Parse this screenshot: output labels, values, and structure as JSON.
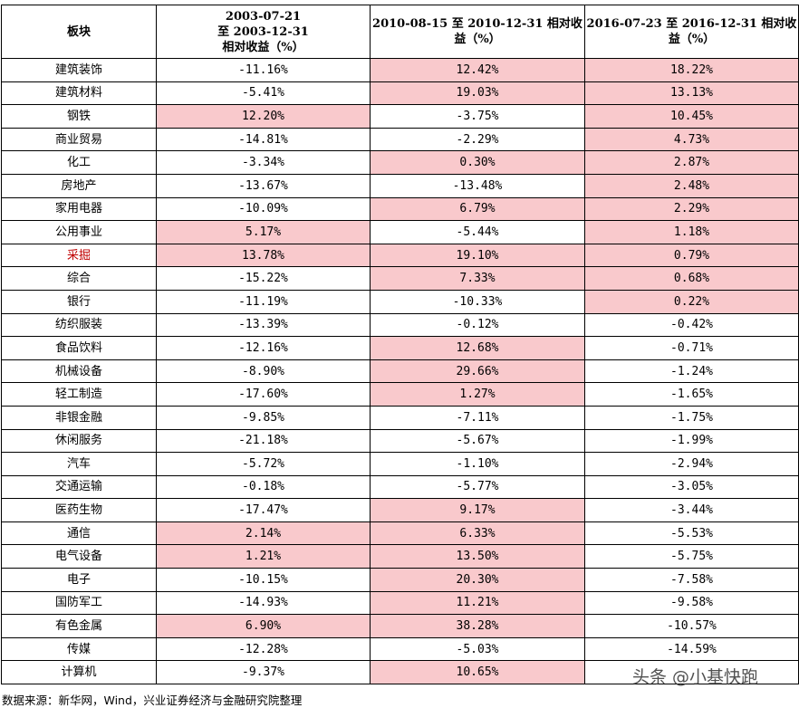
{
  "table": {
    "headers": [
      "板块",
      "2003-07-21\n至 2003-12-31\n相对收益（%）",
      "2010-08-15 至 2010-12-31 相对收益（%）",
      "2016-07-23 至 2016-12-31 相对收益（%）"
    ],
    "rows": [
      {
        "sector": "建筑装饰",
        "c1": "-11.16%",
        "c2": "12.42%",
        "c3": "18.22%",
        "h1": false,
        "h2": true,
        "h3": true,
        "red": false
      },
      {
        "sector": "建筑材料",
        "c1": "-5.41%",
        "c2": "19.03%",
        "c3": "13.13%",
        "h1": false,
        "h2": true,
        "h3": true,
        "red": false
      },
      {
        "sector": "钢铁",
        "c1": "12.20%",
        "c2": "-3.75%",
        "c3": "10.45%",
        "h1": true,
        "h2": false,
        "h3": true,
        "red": false
      },
      {
        "sector": "商业贸易",
        "c1": "-14.81%",
        "c2": "-2.29%",
        "c3": "4.73%",
        "h1": false,
        "h2": false,
        "h3": true,
        "red": false
      },
      {
        "sector": "化工",
        "c1": "-3.34%",
        "c2": "0.30%",
        "c3": "2.87%",
        "h1": false,
        "h2": true,
        "h3": true,
        "red": false
      },
      {
        "sector": "房地产",
        "c1": "-13.67%",
        "c2": "-13.48%",
        "c3": "2.48%",
        "h1": false,
        "h2": false,
        "h3": true,
        "red": false
      },
      {
        "sector": "家用电器",
        "c1": "-10.09%",
        "c2": "6.79%",
        "c3": "2.29%",
        "h1": false,
        "h2": true,
        "h3": true,
        "red": false
      },
      {
        "sector": "公用事业",
        "c1": "5.17%",
        "c2": "-5.44%",
        "c3": "1.18%",
        "h1": true,
        "h2": false,
        "h3": true,
        "red": false
      },
      {
        "sector": "采掘",
        "c1": "13.78%",
        "c2": "19.10%",
        "c3": "0.79%",
        "h1": true,
        "h2": true,
        "h3": true,
        "red": true
      },
      {
        "sector": "综合",
        "c1": "-15.22%",
        "c2": "7.33%",
        "c3": "0.68%",
        "h1": false,
        "h2": true,
        "h3": true,
        "red": false
      },
      {
        "sector": "银行",
        "c1": "-11.19%",
        "c2": "-10.33%",
        "c3": "0.22%",
        "h1": false,
        "h2": false,
        "h3": true,
        "red": false
      },
      {
        "sector": "纺织服装",
        "c1": "-13.39%",
        "c2": "-0.12%",
        "c3": "-0.42%",
        "h1": false,
        "h2": false,
        "h3": false,
        "red": false
      },
      {
        "sector": "食品饮料",
        "c1": "-12.16%",
        "c2": "12.68%",
        "c3": "-0.71%",
        "h1": false,
        "h2": true,
        "h3": false,
        "red": false
      },
      {
        "sector": "机械设备",
        "c1": "-8.90%",
        "c2": "29.66%",
        "c3": "-1.24%",
        "h1": false,
        "h2": true,
        "h3": false,
        "red": false
      },
      {
        "sector": "轻工制造",
        "c1": "-17.60%",
        "c2": "1.27%",
        "c3": "-1.65%",
        "h1": false,
        "h2": true,
        "h3": false,
        "red": false
      },
      {
        "sector": "非银金融",
        "c1": "-9.85%",
        "c2": "-7.11%",
        "c3": "-1.75%",
        "h1": false,
        "h2": false,
        "h3": false,
        "red": false
      },
      {
        "sector": "休闲服务",
        "c1": "-21.18%",
        "c2": "-5.67%",
        "c3": "-1.99%",
        "h1": false,
        "h2": false,
        "h3": false,
        "red": false
      },
      {
        "sector": "汽车",
        "c1": "-5.72%",
        "c2": "-1.10%",
        "c3": "-2.94%",
        "h1": false,
        "h2": false,
        "h3": false,
        "red": false
      },
      {
        "sector": "交通运输",
        "c1": "-0.18%",
        "c2": "-5.77%",
        "c3": "-3.05%",
        "h1": false,
        "h2": false,
        "h3": false,
        "red": false
      },
      {
        "sector": "医药生物",
        "c1": "-17.47%",
        "c2": "9.17%",
        "c3": "-3.44%",
        "h1": false,
        "h2": true,
        "h3": false,
        "red": false
      },
      {
        "sector": "通信",
        "c1": "2.14%",
        "c2": "6.33%",
        "c3": "-5.53%",
        "h1": true,
        "h2": true,
        "h3": false,
        "red": false
      },
      {
        "sector": "电气设备",
        "c1": "1.21%",
        "c2": "13.50%",
        "c3": "-5.75%",
        "h1": true,
        "h2": true,
        "h3": false,
        "red": false
      },
      {
        "sector": "电子",
        "c1": "-10.15%",
        "c2": "20.30%",
        "c3": "-7.58%",
        "h1": false,
        "h2": true,
        "h3": false,
        "red": false
      },
      {
        "sector": "国防军工",
        "c1": "-14.93%",
        "c2": "11.21%",
        "c3": "-9.58%",
        "h1": false,
        "h2": true,
        "h3": false,
        "red": false
      },
      {
        "sector": "有色金属",
        "c1": "6.90%",
        "c2": "38.28%",
        "c3": "-10.57%",
        "h1": true,
        "h2": true,
        "h3": false,
        "red": false
      },
      {
        "sector": "传媒",
        "c1": "-12.28%",
        "c2": "-5.03%",
        "c3": "-14.59%",
        "h1": false,
        "h2": false,
        "h3": false,
        "red": false
      },
      {
        "sector": "计算机",
        "c1": "-9.37%",
        "c2": "10.65%",
        "c3": "",
        "h1": false,
        "h2": true,
        "h3": false,
        "red": false
      }
    ]
  },
  "source": "数据来源：新华网，Wind，兴业证券经济与金融研究院整理",
  "watermark": "头条 @小基快跑",
  "colors": {
    "highlight": "#f9c9cc",
    "red_text": "#c00000"
  }
}
